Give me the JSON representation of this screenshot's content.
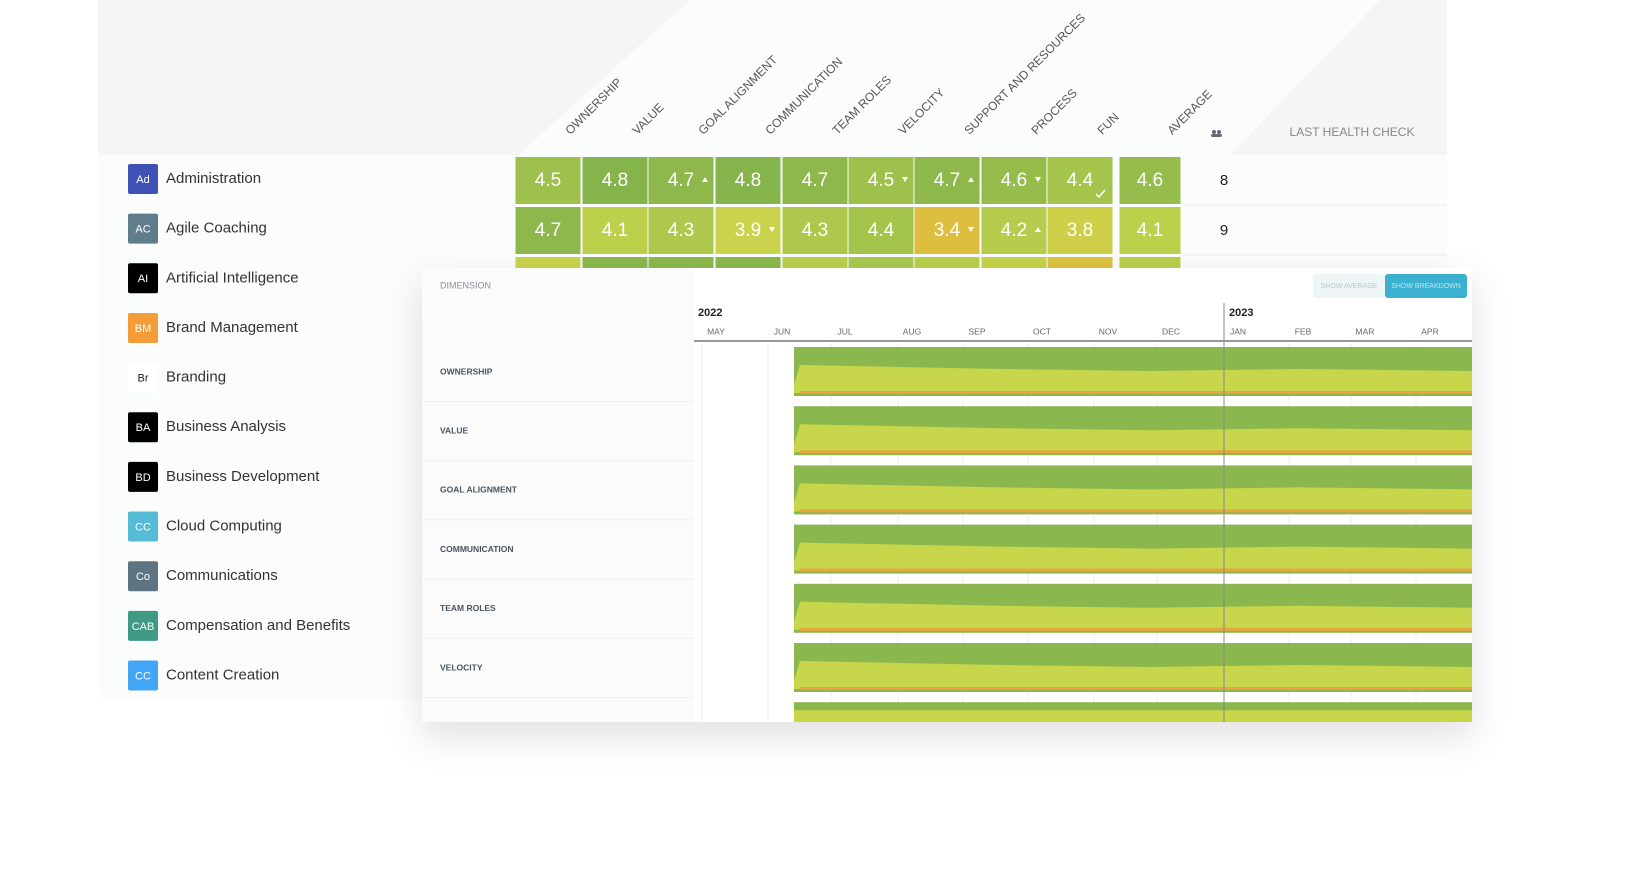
{
  "teams": [
    {
      "initials": "Ad",
      "name": "Administration",
      "color": "#3f51b5"
    },
    {
      "initials": "AC",
      "name": "Agile Coaching",
      "color": "#607d8b"
    },
    {
      "initials": "AI",
      "name": "Artificial Intelligence",
      "color": "#000000"
    },
    {
      "initials": "BM",
      "name": "Brand Management",
      "color": "#f39c38"
    },
    {
      "initials": "Br",
      "name": "Branding",
      "color": "#ffffff"
    },
    {
      "initials": "BA",
      "name": "Business Analysis",
      "color": "#000000"
    },
    {
      "initials": "BD",
      "name": "Business Development",
      "color": "#000000"
    },
    {
      "initials": "CC",
      "name": "Cloud Computing",
      "color": "#56bcd6"
    },
    {
      "initials": "Co",
      "name": "Communications",
      "color": "#5f7482"
    },
    {
      "initials": "CAB",
      "name": "Compensation and Benefits",
      "color": "#3f9a83"
    },
    {
      "initials": "CC",
      "name": "Content Creation",
      "color": "#42a5f5"
    }
  ],
  "columns": [
    "OWNERSHIP",
    "VALUE",
    "GOAL ALIGNMENT",
    "COMMUNICATION",
    "TEAM ROLES",
    "VELOCITY",
    "SUPPORT AND RESOURCES",
    "PROCESS",
    "FUN",
    "AVERAGE",
    "LAST HEALTH CHECK"
  ],
  "rows": [
    {
      "scores": [
        4.5,
        4.8,
        4.7,
        4.8,
        4.7,
        4.5,
        4.7,
        4.6,
        4.4
      ],
      "trends": [
        null,
        null,
        "up",
        null,
        null,
        "down",
        "up",
        "down",
        "check"
      ],
      "average": 4.6,
      "members": 8
    },
    {
      "scores": [
        4.7,
        4.1,
        4.3,
        3.9,
        4.3,
        4.4,
        3.4,
        4.2,
        3.8
      ],
      "trends": [
        null,
        null,
        null,
        "down",
        null,
        null,
        "down",
        "up",
        null
      ],
      "average": 4.1,
      "members": 9
    }
  ],
  "timeline": {
    "header": "DIMENSION",
    "buttons": [
      "SHOW AVERAGE",
      "SHOW BREAKDOWN"
    ],
    "years": [
      "2022",
      "2023"
    ],
    "months": [
      "MAY",
      "JUN",
      "JUL",
      "AUG",
      "SEP",
      "OCT",
      "NOV",
      "DEC",
      "JAN",
      "FEB",
      "MAR",
      "APR"
    ],
    "dimensions": [
      "OWNERSHIP",
      "VALUE",
      "GOAL ALIGNMENT",
      "COMMUNICATION",
      "TEAM ROLES",
      "VELOCITY"
    ]
  }
}
